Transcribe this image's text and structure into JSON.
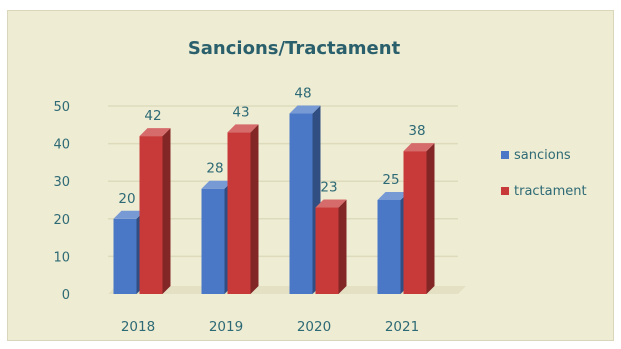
{
  "chart_data": {
    "type": "bar",
    "title": "Sancions/Tractament",
    "categories": [
      "2018",
      "2019",
      "2020",
      "2021"
    ],
    "series": [
      {
        "name": "sancions",
        "values": [
          20,
          28,
          48,
          25
        ],
        "color": "#4a78c7"
      },
      {
        "name": "tractament",
        "values": [
          42,
          43,
          23,
          38
        ],
        "color": "#c83a3a"
      }
    ],
    "y_ticks": [
      "0",
      "10",
      "20",
      "30",
      "40",
      "50"
    ],
    "ylim": [
      0,
      50
    ],
    "grid": true,
    "legend_position": "right",
    "style": "3d-bars"
  }
}
